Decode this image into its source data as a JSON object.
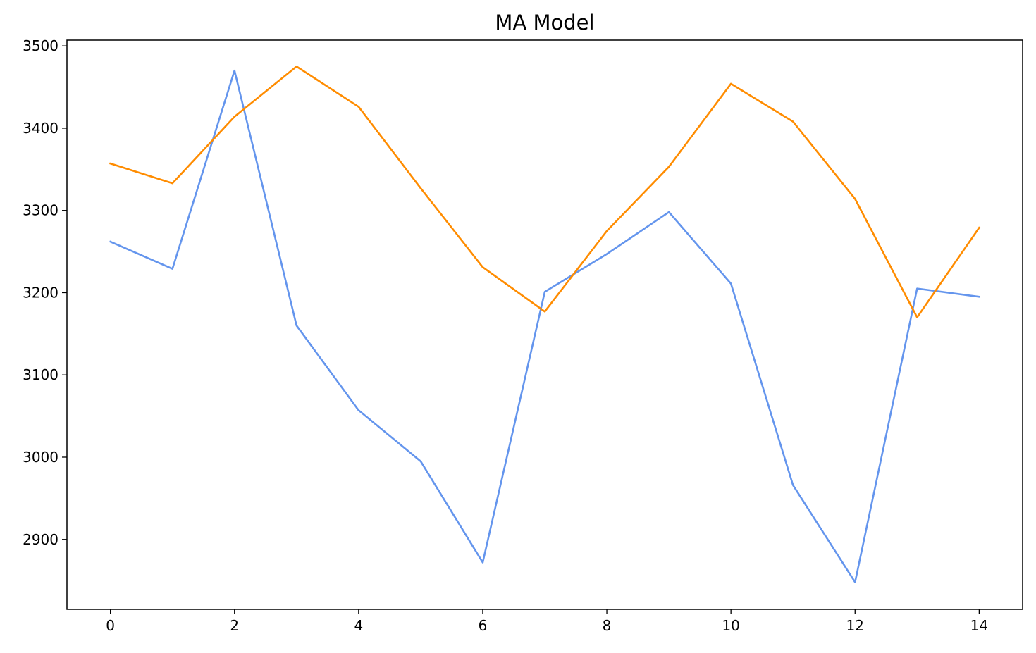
{
  "chart_data": {
    "type": "line",
    "title": "MA Model",
    "xlabel": "",
    "ylabel": "",
    "x": [
      0,
      1,
      2,
      3,
      4,
      5,
      6,
      7,
      8,
      9,
      10,
      11,
      12,
      13,
      14
    ],
    "xlim": [
      -0.7,
      14.7
    ],
    "ylim": [
      2815,
      3507
    ],
    "xticks": [
      0,
      2,
      4,
      6,
      8,
      10,
      12,
      14
    ],
    "yticks": [
      2900,
      3000,
      3100,
      3200,
      3300,
      3400,
      3500
    ],
    "grid": false,
    "legend": "none",
    "series": [
      {
        "color": "#6495ED",
        "values": [
          3262,
          3229,
          3470,
          3160,
          3057,
          2995,
          2872,
          3201,
          3247,
          3298,
          3211,
          2966,
          2848,
          3205,
          3195
        ]
      },
      {
        "color": "#FF8C00",
        "values": [
          3357,
          3333,
          3414,
          3475,
          3426,
          3327,
          3231,
          3177,
          3275,
          3353,
          3454,
          3408,
          3314,
          3170,
          3279
        ]
      }
    ]
  }
}
